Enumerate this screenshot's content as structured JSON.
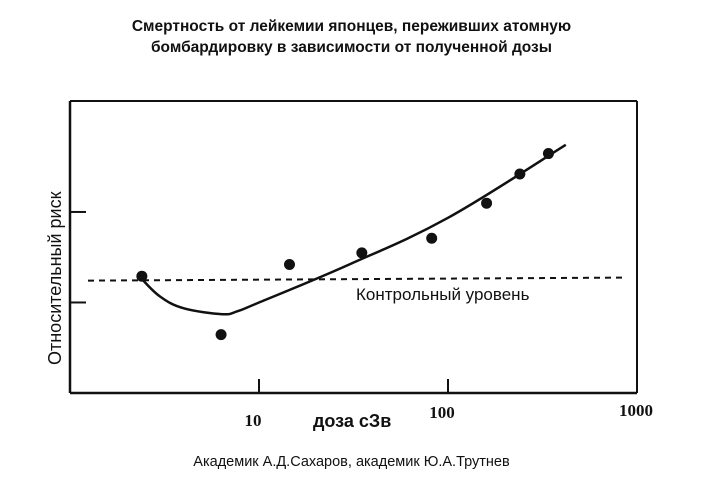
{
  "chart_data": {
    "type": "scatter",
    "title_line1": "Смертность от лейкемии японцев, переживших атомную",
    "title_line2": "бомбардировку в зависимости от полученной дозы",
    "xlabel": "доза сЗв",
    "ylabel": "Относительный риск",
    "x_scale": "log",
    "xlim": [
      1,
      1000
    ],
    "ylim": [
      0,
      1
    ],
    "x_ticks": [
      {
        "value": 10,
        "label": "10"
      },
      {
        "value": 100,
        "label": "100"
      },
      {
        "value": 1000,
        "label": "1000"
      }
    ],
    "y_ticks": [
      0.31,
      0.62
    ],
    "control_level": {
      "y": 0.39,
      "label": "Контрольный уровень"
    },
    "points": [
      {
        "x": 2.4,
        "y": 0.4
      },
      {
        "x": 6.3,
        "y": 0.2
      },
      {
        "x": 14.5,
        "y": 0.44
      },
      {
        "x": 35,
        "y": 0.48
      },
      {
        "x": 82,
        "y": 0.53
      },
      {
        "x": 160,
        "y": 0.65
      },
      {
        "x": 240,
        "y": 0.75
      },
      {
        "x": 340,
        "y": 0.82
      }
    ],
    "fit_curve": [
      {
        "x": 2.4,
        "y": 0.39
      },
      {
        "x": 3.0,
        "y": 0.33
      },
      {
        "x": 4.0,
        "y": 0.29
      },
      {
        "x": 6.4,
        "y": 0.27
      },
      {
        "x": 7.7,
        "y": 0.28
      },
      {
        "x": 10,
        "y": 0.31
      },
      {
        "x": 30,
        "y": 0.44
      },
      {
        "x": 100,
        "y": 0.6
      },
      {
        "x": 420,
        "y": 0.85
      }
    ]
  },
  "credit": "Академик А.Д.Сахаров, академик Ю.А.Трутнев"
}
